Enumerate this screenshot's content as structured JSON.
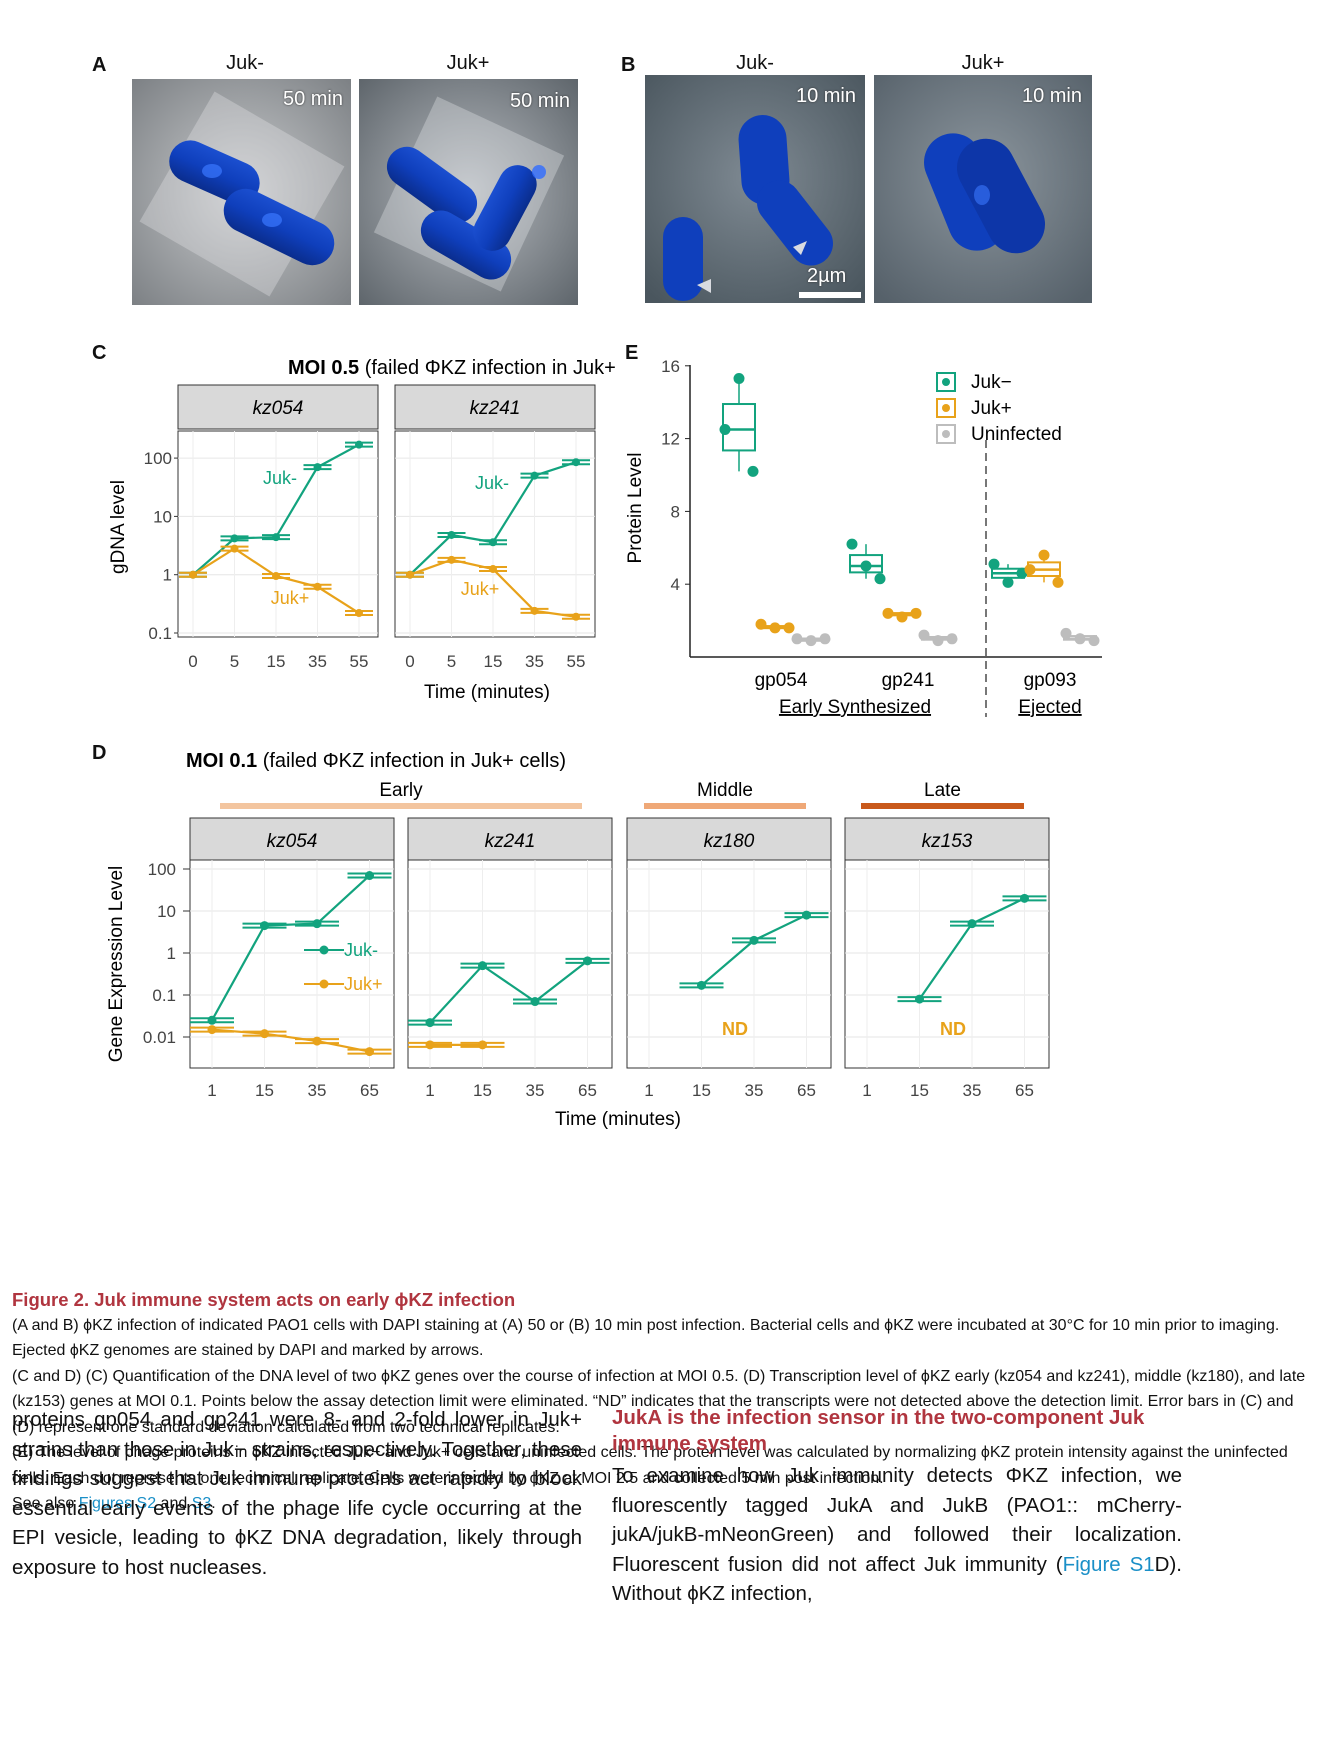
{
  "panels": {
    "A": {
      "letter": "A",
      "labels": [
        "Juk-",
        "Juk+"
      ],
      "times": [
        "50 min",
        "50 min"
      ]
    },
    "B": {
      "letter": "B",
      "labels": [
        "Juk-",
        "Juk+"
      ],
      "times": [
        "10 min",
        "10 min"
      ],
      "scale_bar": "2µm"
    },
    "C": {
      "letter": "C",
      "title_bold": "MOI 0.5",
      "title_rest": " (failed ΦKZ infection in Juk+ cells)",
      "ylabel": "gDNA level",
      "xlabel": "Time (minutes)",
      "yticks": [
        "100",
        "10",
        "1",
        "0.1"
      ],
      "xticks": [
        "0",
        "5",
        "15",
        "35",
        "55"
      ],
      "facets": [
        "kz054",
        "kz241"
      ],
      "line_labels": [
        "Juk-",
        "Juk+"
      ]
    },
    "D": {
      "letter": "D",
      "title_bold": "MOI 0.1",
      "title_rest": " (failed ΦKZ infection in Juk+ cells)",
      "ylabel": "Gene Expression Level",
      "xlabel": "Time (minutes)",
      "yticks": [
        "100",
        "10",
        "1",
        "0.1",
        "0.01"
      ],
      "xticks": [
        "1",
        "15",
        "35",
        "65"
      ],
      "facets": [
        "kz054",
        "kz241",
        "kz180",
        "kz153"
      ],
      "groups": [
        "Early",
        "Middle",
        "Late"
      ],
      "legend": [
        "Juk-",
        "Juk+"
      ],
      "nd": "ND"
    },
    "E": {
      "letter": "E",
      "ylabel": "Protein Level",
      "yticks": [
        "16",
        "12",
        "8",
        "4"
      ],
      "categories": [
        "gp054",
        "gp241",
        "gp093"
      ],
      "group_labels": [
        "Early Synthesized",
        "Ejected"
      ],
      "legend": [
        "Juk−",
        "Juk+",
        "Uninfected"
      ]
    }
  },
  "chart_data": [
    {
      "type": "line",
      "title": "MOI 0.5 (failed ΦKZ infection in Juk+ cells)",
      "xlabel": "Time (minutes)",
      "ylabel": "gDNA level",
      "yscale": "log",
      "ylim": [
        0.1,
        180
      ],
      "x": [
        "0",
        "5",
        "15",
        "35",
        "55"
      ],
      "facets": [
        {
          "name": "kz054",
          "series": [
            {
              "name": "Juk-",
              "values": [
                1.0,
                4.2,
                4.4,
                70,
                170
              ]
            },
            {
              "name": "Juk+",
              "values": [
                1.0,
                2.8,
                0.95,
                0.62,
                0.22
              ]
            }
          ]
        },
        {
          "name": "kz241",
          "series": [
            {
              "name": "Juk-",
              "values": [
                1.0,
                4.8,
                3.6,
                50,
                85
              ]
            },
            {
              "name": "Juk+",
              "values": [
                1.0,
                1.8,
                1.25,
                0.24,
                0.19
              ]
            }
          ]
        }
      ]
    },
    {
      "type": "line",
      "title": "MOI 0.1 (failed ΦKZ infection in Juk+ cells)",
      "xlabel": "Time (minutes)",
      "ylabel": "Gene Expression Level",
      "yscale": "log",
      "ylim": [
        0.005,
        150
      ],
      "x": [
        "1",
        "15",
        "35",
        "65"
      ],
      "facets": [
        {
          "name": "kz054",
          "group": "Early",
          "series": [
            {
              "name": "Juk-",
              "values": [
                0.025,
                4.5,
                5,
                70
              ]
            },
            {
              "name": "Juk+",
              "values": [
                0.015,
                0.012,
                0.008,
                0.0045
              ]
            }
          ]
        },
        {
          "name": "kz241",
          "group": "Early",
          "series": [
            {
              "name": "Juk-",
              "values": [
                0.022,
                0.5,
                0.07,
                0.65
              ]
            },
            {
              "name": "Juk+",
              "values": [
                0.0065,
                0.0065,
                null,
                null
              ]
            }
          ]
        },
        {
          "name": "kz180",
          "group": "Middle",
          "series": [
            {
              "name": "Juk-",
              "values": [
                null,
                0.17,
                2,
                8
              ]
            },
            {
              "name": "Juk+",
              "values": [
                null,
                null,
                null,
                null
              ]
            }
          ]
        },
        {
          "name": "kz153",
          "group": "Late",
          "series": [
            {
              "name": "Juk-",
              "values": [
                null,
                0.08,
                5,
                20
              ]
            },
            {
              "name": "Juk+",
              "values": [
                null,
                null,
                null,
                null
              ]
            }
          ]
        }
      ]
    },
    {
      "type": "box",
      "ylabel": "Protein Level",
      "ylim": [
        0,
        16
      ],
      "categories": [
        "gp054",
        "gp241",
        "gp093"
      ],
      "series": [
        {
          "name": "Juk−",
          "values": [
            [
              12.5,
              15.3,
              10.2
            ],
            [
              6.2,
              5.0,
              4.3
            ],
            [
              5.1,
              4.1,
              4.6
            ]
          ]
        },
        {
          "name": "Juk+",
          "values": [
            [
              1.8,
              1.6,
              1.6
            ],
            [
              2.4,
              2.2,
              2.4
            ],
            [
              4.8,
              5.6,
              4.1
            ]
          ]
        },
        {
          "name": "Uninfected",
          "values": [
            [
              1.0,
              0.9,
              1.0
            ],
            [
              1.2,
              0.9,
              1.0
            ],
            [
              1.3,
              1.0,
              0.9
            ]
          ]
        }
      ]
    }
  ],
  "caption": {
    "title": "Figure 2. Juk immune system acts on early ϕKZ infection",
    "p1": "(A and B) ϕKZ infection of indicated PAO1 cells with DAPI staining at (A) 50 or (B) 10 min post infection. Bacterial cells and ϕKZ were incubated at 30°C for 10 min prior to imaging. Ejected ϕKZ genomes are stained by DAPI and marked by arrows.",
    "p2": "(C and D) (C) Quantification of the DNA level of two ϕKZ genes over the course of infection at MOI 0.5. (D) Transcription level of ϕKZ early (kz054 and kz241), middle (kz180), and late (kz153) genes at MOI 0.1. Points below the assay detection limit were eliminated. “ND” indicates that the transcripts were not detected above the detection limit. Error bars in (C) and (D) represent one standard deviation calculated from two technical replicates.",
    "p3": "(E) The level of phage proteins in ϕKZ infected Juk− and Juk+ cells and uninfected cells. The protein level was calculated by normalizing ϕKZ protein intensity against the uninfected cells. Each dot represents one technical replicate. Cells were infected by ϕKZ at MOI 2.5 and collected 5 min post infection.",
    "see_also_prefix": "See also ",
    "link1": "Figures S2",
    "and": " and ",
    "link2": "S3",
    "end": "."
  },
  "body": {
    "left": "proteins gp054 and gp241 were 8- and 2-fold lower in Juk+ strains than those in Juk− strains, respectively. Together, these findings suggest that Juk immune proteins act rapidly to block essential early events of the phage life cycle occurring at the EPI vesicle, leading to ϕKZ DNA degradation, likely through exposure to host nucleases.",
    "heading": "JukA is the infection sensor in the two-component Juk immune system",
    "right_pre": "To examine how Juk immunity detects ΦKZ infection, we fluorescently tagged JukA and JukB (PAO1:: mCherry-jukA/jukB-mNeonGreen) and followed their localization. Fluorescent fusion did not affect Juk immunity (",
    "right_link": "Figure S1",
    "right_post": "D). Without ϕKZ infection,"
  }
}
